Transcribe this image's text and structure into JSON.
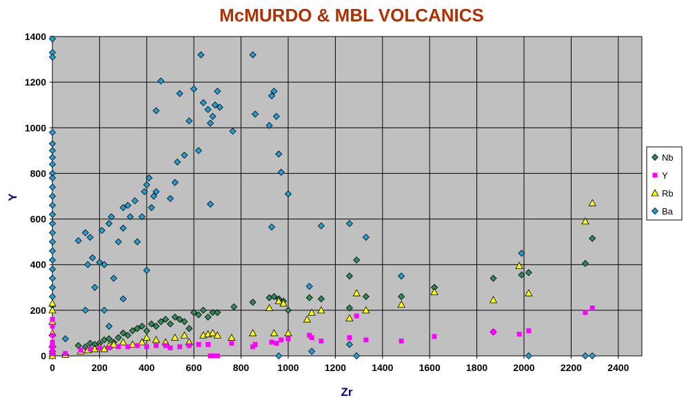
{
  "chart_data": {
    "type": "scatter",
    "title": "McMURDO & MBL VOLCANICS",
    "xlabel": "Zr",
    "ylabel": "Y",
    "xlim": [
      0,
      2500
    ],
    "ylim": [
      0,
      1400
    ],
    "xticks": [
      0,
      200,
      400,
      600,
      800,
      1000,
      1200,
      1400,
      1600,
      1800,
      2000,
      2200,
      2400
    ],
    "yticks": [
      0,
      200,
      400,
      600,
      800,
      1000,
      1200,
      1400
    ],
    "grid": true,
    "plot_background": "#c0c0c0",
    "legend_position": "right",
    "colors": {
      "title": "#b03000",
      "axis_title": "#000080"
    },
    "series": [
      {
        "name": "Nb",
        "marker": "diamond",
        "color": "#2e8b57",
        "points": [
          [
            0,
            0
          ],
          [
            0,
            10
          ],
          [
            0,
            20
          ],
          [
            0,
            40
          ],
          [
            55,
            5
          ],
          [
            110,
            45
          ],
          [
            140,
            40
          ],
          [
            160,
            55
          ],
          [
            180,
            50
          ],
          [
            200,
            55
          ],
          [
            220,
            70
          ],
          [
            240,
            75
          ],
          [
            260,
            60
          ],
          [
            280,
            80
          ],
          [
            300,
            100
          ],
          [
            320,
            90
          ],
          [
            340,
            110
          ],
          [
            360,
            120
          ],
          [
            380,
            130
          ],
          [
            400,
            110
          ],
          [
            420,
            140
          ],
          [
            440,
            130
          ],
          [
            460,
            150
          ],
          [
            480,
            160
          ],
          [
            500,
            140
          ],
          [
            520,
            170
          ],
          [
            540,
            160
          ],
          [
            560,
            150
          ],
          [
            580,
            120
          ],
          [
            600,
            190
          ],
          [
            620,
            180
          ],
          [
            640,
            200
          ],
          [
            660,
            170
          ],
          [
            680,
            190
          ],
          [
            700,
            190
          ],
          [
            770,
            215
          ],
          [
            850,
            235
          ],
          [
            920,
            255
          ],
          [
            940,
            260
          ],
          [
            960,
            250
          ],
          [
            980,
            240
          ],
          [
            1000,
            200
          ],
          [
            1090,
            255
          ],
          [
            1140,
            250
          ],
          [
            1260,
            210
          ],
          [
            1260,
            350
          ],
          [
            1290,
            420
          ],
          [
            1330,
            260
          ],
          [
            1480,
            260
          ],
          [
            1620,
            300
          ],
          [
            1870,
            340
          ],
          [
            1990,
            355
          ],
          [
            2020,
            365
          ],
          [
            2260,
            405
          ],
          [
            2290,
            515
          ]
        ]
      },
      {
        "name": "Y",
        "marker": "square",
        "color": "#ff00ff",
        "points": [
          [
            0,
            10
          ],
          [
            0,
            20
          ],
          [
            0,
            40
          ],
          [
            0,
            60
          ],
          [
            0,
            90
          ],
          [
            0,
            130
          ],
          [
            0,
            160
          ],
          [
            55,
            10
          ],
          [
            120,
            25
          ],
          [
            160,
            30
          ],
          [
            200,
            35
          ],
          [
            240,
            35
          ],
          [
            280,
            40
          ],
          [
            320,
            40
          ],
          [
            360,
            45
          ],
          [
            400,
            40
          ],
          [
            440,
            45
          ],
          [
            480,
            45
          ],
          [
            500,
            35
          ],
          [
            540,
            40
          ],
          [
            580,
            45
          ],
          [
            620,
            50
          ],
          [
            660,
            50
          ],
          [
            670,
            0
          ],
          [
            690,
            0
          ],
          [
            700,
            0
          ],
          [
            760,
            55
          ],
          [
            850,
            40
          ],
          [
            860,
            50
          ],
          [
            930,
            60
          ],
          [
            950,
            55
          ],
          [
            970,
            70
          ],
          [
            1000,
            75
          ],
          [
            1090,
            90
          ],
          [
            1100,
            80
          ],
          [
            1140,
            65
          ],
          [
            1260,
            80
          ],
          [
            1290,
            175
          ],
          [
            1330,
            70
          ],
          [
            1480,
            65
          ],
          [
            1620,
            85
          ],
          [
            1870,
            105
          ],
          [
            1980,
            95
          ],
          [
            2020,
            110
          ],
          [
            2260,
            190
          ],
          [
            2290,
            210
          ]
        ]
      },
      {
        "name": "Rb",
        "marker": "triangle",
        "color": "#ffff00",
        "points": [
          [
            0,
            0
          ],
          [
            0,
            50
          ],
          [
            0,
            100
          ],
          [
            0,
            150
          ],
          [
            0,
            200
          ],
          [
            0,
            230
          ],
          [
            55,
            5
          ],
          [
            120,
            20
          ],
          [
            150,
            25
          ],
          [
            180,
            30
          ],
          [
            200,
            40
          ],
          [
            220,
            30
          ],
          [
            240,
            45
          ],
          [
            260,
            50
          ],
          [
            300,
            60
          ],
          [
            340,
            50
          ],
          [
            380,
            60
          ],
          [
            400,
            80
          ],
          [
            440,
            70
          ],
          [
            480,
            60
          ],
          [
            520,
            80
          ],
          [
            560,
            90
          ],
          [
            580,
            60
          ],
          [
            640,
            90
          ],
          [
            660,
            95
          ],
          [
            680,
            100
          ],
          [
            700,
            90
          ],
          [
            760,
            80
          ],
          [
            850,
            100
          ],
          [
            920,
            210
          ],
          [
            940,
            100
          ],
          [
            960,
            240
          ],
          [
            980,
            230
          ],
          [
            1000,
            100
          ],
          [
            1080,
            160
          ],
          [
            1100,
            190
          ],
          [
            1140,
            200
          ],
          [
            1260,
            165
          ],
          [
            1290,
            275
          ],
          [
            1330,
            200
          ],
          [
            1480,
            225
          ],
          [
            1620,
            280
          ],
          [
            1870,
            245
          ],
          [
            1980,
            395
          ],
          [
            2020,
            275
          ],
          [
            2260,
            590
          ],
          [
            2290,
            670
          ]
        ]
      },
      {
        "name": "Ba",
        "marker": "diamond",
        "color": "#1e9fd8",
        "points": [
          [
            0,
            1390
          ],
          [
            0,
            1330
          ],
          [
            0,
            1310
          ],
          [
            0,
            980
          ],
          [
            0,
            930
          ],
          [
            0,
            900
          ],
          [
            0,
            870
          ],
          [
            0,
            840
          ],
          [
            0,
            800
          ],
          [
            0,
            780
          ],
          [
            0,
            740
          ],
          [
            0,
            700
          ],
          [
            0,
            660
          ],
          [
            0,
            620
          ],
          [
            0,
            580
          ],
          [
            0,
            540
          ],
          [
            0,
            500
          ],
          [
            0,
            460
          ],
          [
            0,
            420
          ],
          [
            0,
            380
          ],
          [
            0,
            340
          ],
          [
            0,
            300
          ],
          [
            0,
            260
          ],
          [
            0,
            220
          ],
          [
            55,
            75
          ],
          [
            110,
            505
          ],
          [
            140,
            540
          ],
          [
            150,
            400
          ],
          [
            160,
            520
          ],
          [
            170,
            430
          ],
          [
            180,
            300
          ],
          [
            200,
            410
          ],
          [
            210,
            550
          ],
          [
            220,
            400
          ],
          [
            240,
            580
          ],
          [
            250,
            610
          ],
          [
            280,
            500
          ],
          [
            300,
            560
          ],
          [
            300,
            650
          ],
          [
            320,
            660
          ],
          [
            330,
            610
          ],
          [
            350,
            680
          ],
          [
            360,
            500
          ],
          [
            380,
            610
          ],
          [
            390,
            720
          ],
          [
            400,
            750
          ],
          [
            410,
            780
          ],
          [
            420,
            650
          ],
          [
            430,
            700
          ],
          [
            440,
            720
          ],
          [
            440,
            1075
          ],
          [
            460,
            1205
          ],
          [
            500,
            690
          ],
          [
            520,
            760
          ],
          [
            530,
            850
          ],
          [
            540,
            1150
          ],
          [
            560,
            880
          ],
          [
            580,
            1030
          ],
          [
            600,
            1170
          ],
          [
            620,
            900
          ],
          [
            630,
            1320
          ],
          [
            640,
            1110
          ],
          [
            660,
            1080
          ],
          [
            670,
            1020
          ],
          [
            680,
            1050
          ],
          [
            690,
            1100
          ],
          [
            700,
            1160
          ],
          [
            710,
            1090
          ],
          [
            765,
            985
          ],
          [
            850,
            1320
          ],
          [
            860,
            1060
          ],
          [
            920,
            1010
          ],
          [
            930,
            1140
          ],
          [
            940,
            1160
          ],
          [
            950,
            1050
          ],
          [
            960,
            885
          ],
          [
            970,
            805
          ],
          [
            1000,
            710
          ],
          [
            930,
            565
          ],
          [
            1140,
            570
          ],
          [
            1090,
            305
          ],
          [
            1100,
            20
          ],
          [
            1260,
            580
          ],
          [
            1260,
            50
          ],
          [
            1290,
            0
          ],
          [
            1330,
            520
          ],
          [
            1480,
            350
          ],
          [
            1620,
            300
          ],
          [
            1870,
            105
          ],
          [
            1990,
            450
          ],
          [
            2020,
            0
          ],
          [
            2260,
            0
          ],
          [
            2290,
            0
          ],
          [
            960,
            0
          ],
          [
            670,
            665
          ],
          [
            400,
            375
          ],
          [
            240,
            130
          ],
          [
            260,
            340
          ],
          [
            300,
            250
          ],
          [
            140,
            200
          ],
          [
            220,
            200
          ]
        ]
      }
    ]
  }
}
